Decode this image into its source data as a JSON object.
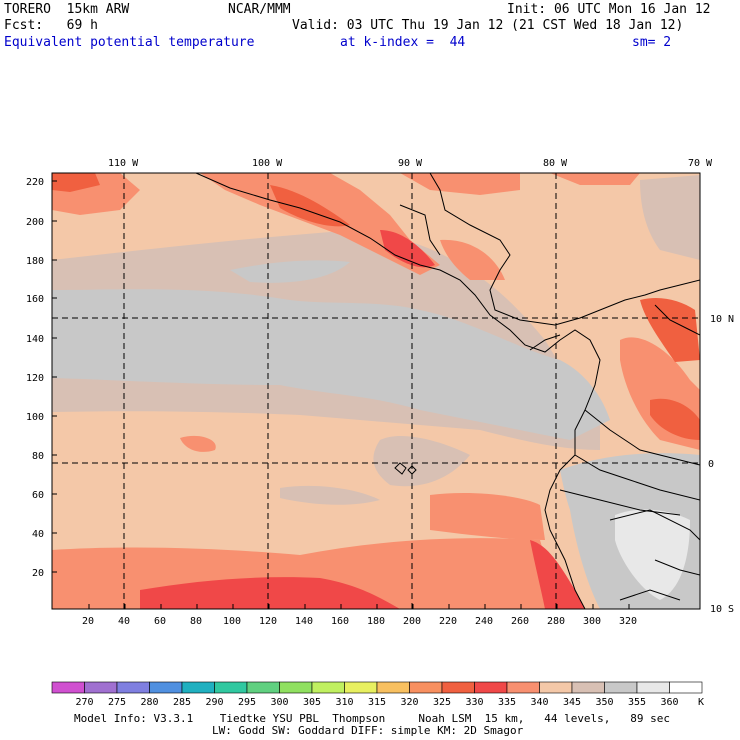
{
  "header": {
    "model": "TORERO  15km ARW",
    "center": "NCAR/MMM",
    "init": "Init: 06 UTC Mon 16 Jan 12",
    "fcst": "Fcst:   69 h",
    "valid": "Valid: 03 UTC Thu 19 Jan 12 (21 CST Wed 18 Jan 12)",
    "field": "Equivalent potential temperature",
    "level": "at k-index =  44",
    "smooth": "sm= 2"
  },
  "map": {
    "lon_labels": [
      "110 W",
      "100 W",
      "90 W",
      "80 W",
      "70 W"
    ],
    "lat_labels": [
      "10 N",
      "0",
      "10 S"
    ],
    "x_ticks": [
      "20",
      "40",
      "60",
      "80",
      "100",
      "120",
      "140",
      "160",
      "180",
      "200",
      "220",
      "240",
      "260",
      "280",
      "300",
      "320"
    ],
    "y_ticks": [
      "220",
      "200",
      "180",
      "160",
      "140",
      "120",
      "100",
      "80",
      "60",
      "40",
      "20"
    ]
  },
  "colorbar": {
    "values": [
      "270",
      "275",
      "280",
      "285",
      "290",
      "295",
      "300",
      "305",
      "310",
      "315",
      "320",
      "325",
      "330",
      "335",
      "340",
      "345",
      "350",
      "355",
      "360"
    ],
    "unit": "K",
    "colors": [
      "#d050d0",
      "#a070d0",
      "#7f7fe0",
      "#5090e0",
      "#20b0c0",
      "#30c8a0",
      "#60d080",
      "#90e060",
      "#c0f060",
      "#e8f060",
      "#f8c060",
      "#f89060",
      "#f06040",
      "#f04848",
      "#f89070",
      "#f4c8a8",
      "#d8c0b4",
      "#c8c8c8",
      "#e8e8e8",
      "#ffffff"
    ]
  },
  "footer": {
    "line1": "Model Info: V3.3.1    Tiedtke YSU PBL  Thompson     Noah LSM  15 km,   44 levels,   89 sec",
    "line2": "LW: Godd SW: Goddard DIFF: simple KM: 2D Smagor"
  }
}
